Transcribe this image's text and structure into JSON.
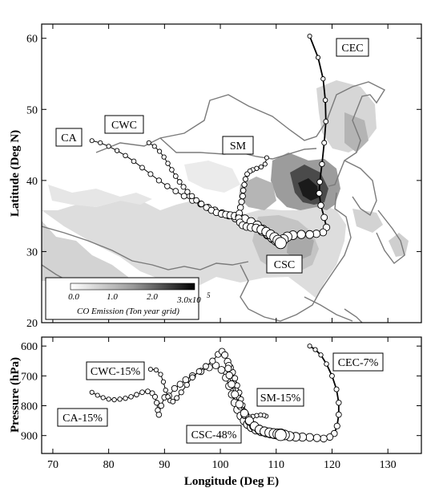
{
  "chart_data": [
    {
      "type": "scatter",
      "panel": "map",
      "ylabel": "Latitude (Deg N)",
      "xlim": [
        68,
        136
      ],
      "ylim": [
        20,
        62
      ],
      "yticks": [
        20,
        30,
        40,
        50,
        60
      ],
      "colorbar": {
        "label": "CO Emission (Ton year grid)",
        "tick_labels": [
          "0.0",
          "1.0",
          "2.0",
          "3.0x10"
        ],
        "exponent": "5",
        "range": [
          0,
          300000
        ],
        "colors": [
          "#ffffff",
          "#000000"
        ]
      },
      "labels": [
        "CEC",
        "CA",
        "CWC",
        "SM",
        "CSC"
      ],
      "series": [
        {
          "name": "CEC",
          "x": [
            116,
            117.5,
            118.4,
            118.8,
            118.9,
            118.6,
            118.2,
            117.8,
            117.7,
            118.0,
            118.6,
            119.0,
            118.4,
            117.2,
            116.0,
            114.5,
            113.0,
            112.0,
            111.3,
            110.8
          ],
          "y": [
            60.3,
            57.3,
            54.3,
            51.3,
            48.3,
            45.3,
            42.3,
            39.8,
            38.2,
            36.5,
            34.8,
            33.4,
            32.7,
            32.5,
            32.4,
            32.4,
            32.3,
            32.1,
            31.7,
            31.2
          ]
        },
        {
          "name": "CA",
          "x": [
            77,
            78.5,
            80,
            81.5,
            83,
            84.5,
            86,
            87.5,
            89,
            90.5,
            92,
            93.5,
            95,
            96.5,
            97.8,
            99,
            100.3,
            101.5,
            102.7,
            104,
            105.2,
            106.4,
            107.5,
            108.5,
            109.4,
            110.2,
            110.8
          ],
          "y": [
            45.6,
            45.3,
            44.8,
            44.2,
            43.5,
            42.7,
            41.8,
            40.9,
            40.0,
            39.2,
            38.5,
            37.8,
            37.2,
            36.7,
            36.2,
            35.8,
            35.4,
            35.1,
            34.7,
            34.3,
            33.9,
            33.4,
            32.9,
            32.4,
            31.9,
            31.5,
            31.2
          ]
        },
        {
          "name": "CWC",
          "x": [
            87.2,
            88.2,
            89.1,
            89.9,
            90.6,
            91.3,
            92.0,
            92.7,
            93.4,
            94.1,
            94.9,
            95.7,
            96.6,
            97.5,
            98.4,
            99.3,
            100.2,
            101.0,
            101.8,
            102.6,
            103.4,
            104.4,
            105.5,
            106.6,
            107.6,
            108.5,
            109.3,
            110.0,
            110.8
          ],
          "y": [
            45.3,
            44.8,
            44.1,
            43.3,
            42.4,
            41.5,
            40.6,
            39.8,
            39.1,
            38.4,
            37.8,
            37.2,
            36.7,
            36.2,
            35.8,
            35.5,
            35.3,
            35.2,
            35.1,
            35.0,
            34.9,
            34.6,
            34.2,
            33.7,
            33.1,
            32.5,
            32.0,
            31.6,
            31.2
          ]
        },
        {
          "name": "SM",
          "x": [
            108.3,
            108.0,
            107.3,
            106.5,
            105.8,
            105.3,
            104.8,
            104.5,
            104.3,
            104.1,
            104.0,
            103.8,
            103.6,
            103.4,
            103.3,
            103.5,
            104.0,
            104.7,
            105.5,
            106.4,
            107.3,
            108.2,
            109.0,
            109.7,
            110.3,
            110.8
          ],
          "y": [
            43.2,
            42.3,
            41.9,
            41.7,
            41.5,
            41.3,
            40.9,
            40.2,
            39.4,
            38.6,
            37.8,
            37.0,
            36.2,
            35.4,
            34.7,
            34.1,
            33.7,
            33.5,
            33.4,
            33.3,
            33.1,
            32.8,
            32.4,
            32.0,
            31.6,
            31.2
          ]
        },
        {
          "name": "CSC",
          "x": [
            110.8
          ],
          "y": [
            31.2
          ]
        }
      ]
    },
    {
      "type": "scatter",
      "panel": "pressure",
      "xlabel": "Longitude (Deg E)",
      "ylabel": "Pressure (hPa)",
      "xlim": [
        68,
        136
      ],
      "ylim": [
        960,
        570
      ],
      "xticks": [
        70,
        80,
        90,
        100,
        110,
        120,
        130
      ],
      "yticks": [
        600,
        700,
        800,
        900
      ],
      "labels": [
        "CEC-7%",
        "CWC-15%",
        "SM-15%",
        "CA-15%",
        "CSC-48%"
      ],
      "series": [
        {
          "name": "CEC-7%",
          "x": [
            116,
            117,
            118,
            119,
            120,
            120.8,
            121.2,
            121.2,
            120.9,
            120.4,
            119.6,
            118.5,
            117.3,
            116.0,
            114.7,
            113.5,
            112.4,
            111.5,
            110.8
          ],
          "y": [
            600,
            612,
            630,
            660,
            700,
            745,
            790,
            830,
            868,
            893,
            905,
            910,
            908,
            906,
            905,
            904,
            902,
            898,
            895
          ]
        },
        {
          "name": "CA-15%",
          "x": [
            77,
            78,
            79,
            80,
            81,
            82,
            83,
            84,
            85,
            86,
            87,
            87.8,
            88.3,
            88.6,
            88.8,
            89.0,
            89.4,
            90.0,
            90.8,
            91.8,
            92.8,
            93.8,
            95.0,
            96.5,
            98.0,
            99.2,
            100.2,
            101.0,
            101.6,
            102.1,
            102.6,
            103.1,
            103.7,
            104.3,
            104.9,
            105.6,
            106.4,
            107.3,
            108.2,
            109.0,
            109.7,
            110.3,
            110.8
          ],
          "y": [
            755,
            765,
            773,
            778,
            780,
            778,
            775,
            770,
            763,
            755,
            752,
            758,
            770,
            790,
            815,
            830,
            800,
            772,
            767,
            742,
            728,
            713,
            700,
            685,
            672,
            665,
            680,
            706,
            734,
            762,
            790,
            813,
            834,
            850,
            862,
            872,
            880,
            885,
            889,
            892,
            894,
            895,
            895
          ]
        },
        {
          "name": "CWC-15%",
          "x": [
            87.5,
            88.5,
            89.3,
            89.8,
            90.2,
            90.6,
            91.0,
            91.5,
            92.2,
            93.0,
            94.0,
            95.0,
            96.2,
            97.4,
            98.6,
            99.6,
            100.3,
            100.8,
            101.3,
            101.8,
            102.4,
            103.0,
            103.7,
            104.4,
            105.2,
            106.0,
            106.9,
            107.8,
            108.7,
            109.5,
            110.2,
            110.8
          ],
          "y": [
            678,
            680,
            695,
            720,
            748,
            770,
            783,
            786,
            774,
            755,
            730,
            705,
            685,
            668,
            650,
            628,
            618,
            630,
            652,
            688,
            728,
            768,
            802,
            830,
            852,
            868,
            879,
            886,
            890,
            893,
            895,
            895
          ]
        },
        {
          "name": "SM-15%",
          "x": [
            108.2,
            107.8,
            107.2,
            106.5,
            105.8,
            105.2,
            104.7,
            104.3,
            104.0,
            103.7,
            103.4,
            103.0,
            102.6,
            102.2,
            101.8,
            101.5,
            101.4,
            101.6,
            102.0,
            102.6,
            103.4,
            104.3,
            105.2,
            106.1,
            107.0,
            107.9,
            108.8,
            109.6,
            110.3,
            110.8
          ],
          "y": [
            835,
            832,
            831,
            833,
            836,
            838,
            833,
            818,
            798,
            778,
            756,
            732,
            708,
            688,
            672,
            665,
            675,
            698,
            728,
            762,
            795,
            825,
            850,
            868,
            880,
            886,
            890,
            893,
            895,
            896
          ]
        },
        {
          "name": "CSC-48%",
          "x": [
            110.8
          ],
          "y": [
            898
          ]
        }
      ]
    }
  ]
}
